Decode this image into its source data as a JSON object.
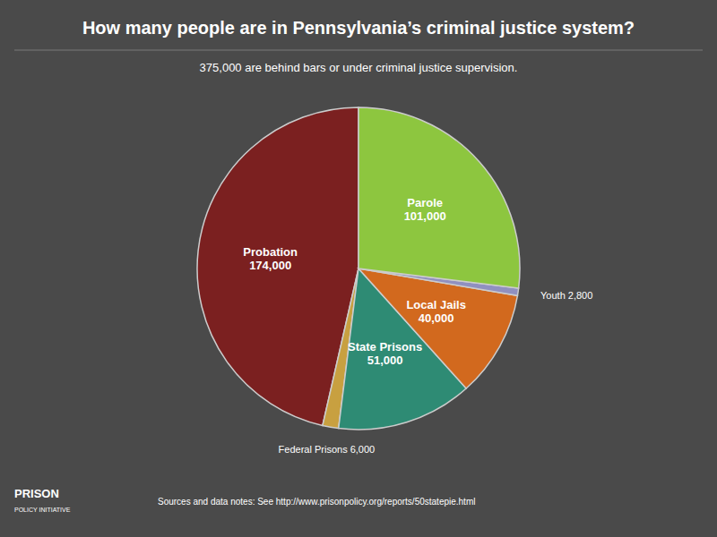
{
  "chart_data": {
    "type": "pie",
    "title": "How many people are in Pennsylvania’s criminal justice system?",
    "subtitle": "375,000 are behind bars or under criminal justice supervision.",
    "values": [
      174000,
      6000,
      51000,
      40000,
      2800,
      101000
    ],
    "value_labels": [
      "Probation\n174,000",
      "Federal Prisons 6,000",
      "State Prisons\n51,000",
      "Local Jails\n40,000",
      "Youth 2,800",
      "Parole\n101,000"
    ],
    "colors": [
      "#7b2020",
      "#c8a040",
      "#2e8b74",
      "#d2691e",
      "#9090c0",
      "#8dc63f"
    ],
    "annotations": [
      "PRISON",
      "POLICY INITIATIVE",
      "Sources and data notes: See http://www.prisonpolicy.org/reports/50statepie.html"
    ]
  }
}
